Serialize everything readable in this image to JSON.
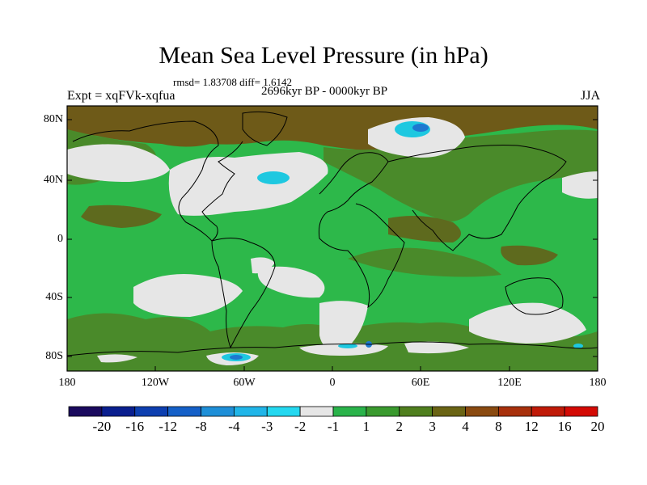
{
  "title": "Mean Sea Level Pressure (in hPa)",
  "stats": "rmsd= 1.83708 diff= 1.6142",
  "experiment": "Expt = xqFVk-xqfua",
  "period": "2696kyr BP - 0000kyr BP",
  "season": "JJA",
  "y_ticks": [
    "80N",
    "40N",
    "0",
    "40S",
    "80S"
  ],
  "x_ticks": [
    "180",
    "120W",
    "60W",
    "0",
    "60E",
    "120E",
    "180"
  ],
  "colorbar": {
    "labels": [
      "-20",
      "-16",
      "-12",
      "-8",
      "-4",
      "-3",
      "-2",
      "-1",
      "1",
      "2",
      "3",
      "4",
      "8",
      "12",
      "16",
      "20"
    ],
    "colors": [
      "#1a0a5e",
      "#0a1f8f",
      "#0d3fb0",
      "#1560c8",
      "#1e8fd8",
      "#20b5e8",
      "#24d8f0",
      "#e6e6e6",
      "#2ab34a",
      "#3a9a2e",
      "#4f7f1e",
      "#6a6414",
      "#8a4a10",
      "#a8300c",
      "#c01a08",
      "#d40a04"
    ]
  },
  "palette": {
    "green": "#2db84a",
    "dark_green": "#4a8a2a",
    "olive": "#5e6a1e",
    "brown": "#6e5a18",
    "light_gray": "#e6e6e6",
    "cyan": "#1ec8e0",
    "blue": "#1e78d0"
  }
}
